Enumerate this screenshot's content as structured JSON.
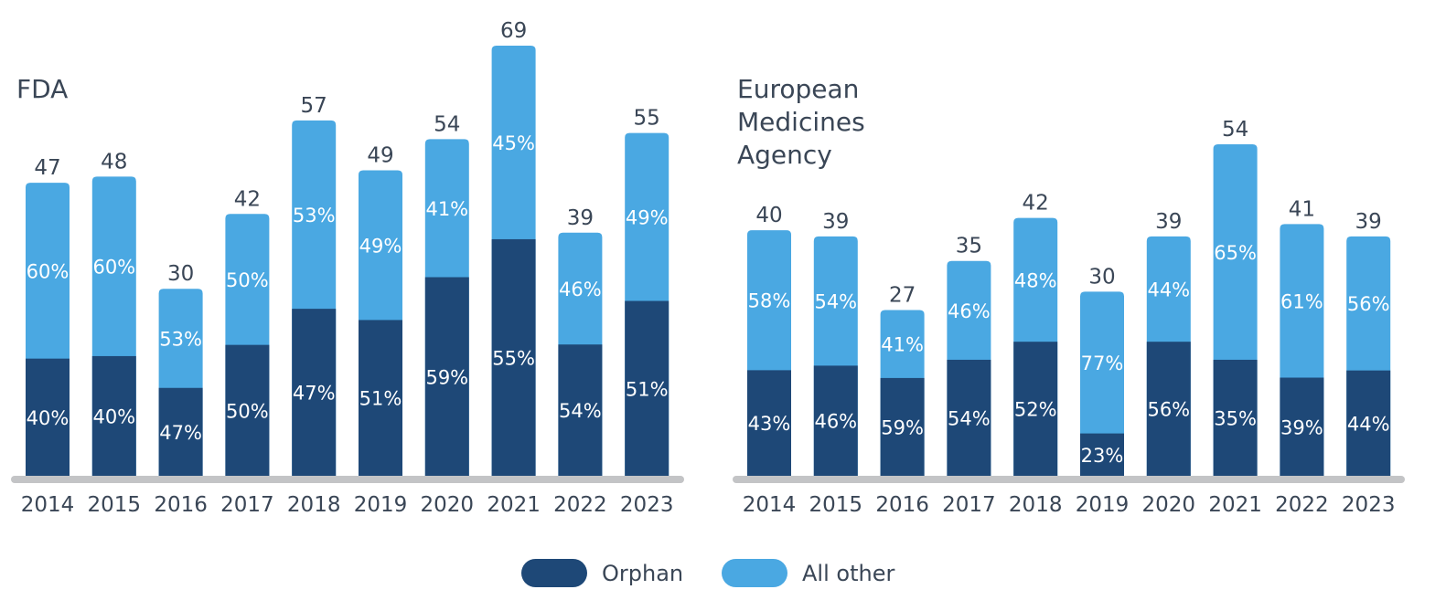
{
  "colors": {
    "orphan": "#1e4877",
    "other": "#4aa8e2",
    "baseline": "#c3c4c6",
    "text": "#3a4656"
  },
  "legend": {
    "orphan": "Orphan",
    "other": "All other"
  },
  "chart_data": [
    {
      "type": "bar",
      "stacked": true,
      "title": "FDA",
      "categories": [
        "2014",
        "2015",
        "2016",
        "2017",
        "2018",
        "2019",
        "2020",
        "2021",
        "2022",
        "2023"
      ],
      "totals": [
        47,
        48,
        30,
        42,
        57,
        49,
        54,
        69,
        39,
        55
      ],
      "series": [
        {
          "name": "Orphan",
          "percent_labels": [
            "40%",
            "40%",
            "47%",
            "50%",
            "47%",
            "51%",
            "59%",
            "55%",
            "54%",
            "51%"
          ]
        },
        {
          "name": "All other",
          "percent_labels": [
            "60%",
            "60%",
            "53%",
            "50%",
            "53%",
            "49%",
            "41%",
            "45%",
            "46%",
            "49%"
          ]
        }
      ],
      "ylim": [
        0,
        69
      ],
      "grid": false,
      "legend_position": "bottom"
    },
    {
      "type": "bar",
      "stacked": true,
      "title": "European Medicines Agency",
      "categories": [
        "2014",
        "2015",
        "2016",
        "2017",
        "2018",
        "2019",
        "2020",
        "2021",
        "2022",
        "2023"
      ],
      "totals": [
        40,
        39,
        27,
        35,
        42,
        30,
        39,
        54,
        41,
        39
      ],
      "series": [
        {
          "name": "Orphan",
          "percent_labels": [
            "43%",
            "46%",
            "59%",
            "54%",
            "52%",
            "23%",
            "56%",
            "35%",
            "39%",
            "44%"
          ]
        },
        {
          "name": "All other",
          "percent_labels": [
            "58%",
            "54%",
            "41%",
            "46%",
            "48%",
            "77%",
            "44%",
            "65%",
            "61%",
            "56%"
          ]
        }
      ],
      "ylim": [
        0,
        54
      ],
      "grid": false,
      "legend_position": "bottom"
    }
  ]
}
